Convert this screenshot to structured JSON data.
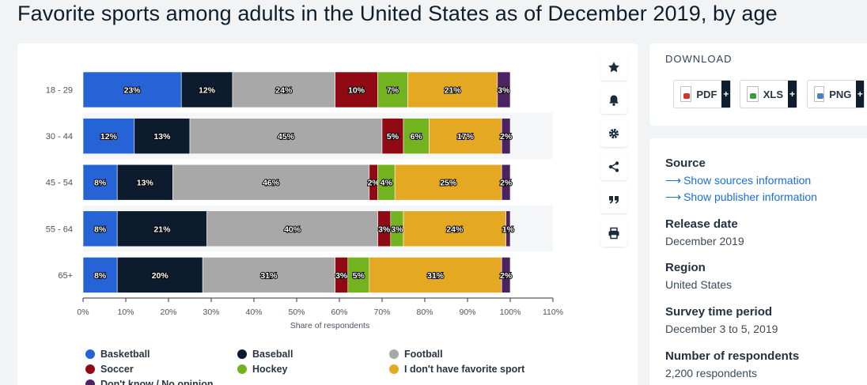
{
  "page_title": "Favorite sports among adults in the United States as of December 2019, by age",
  "toolbar": {
    "buttons": [
      {
        "icon": "star-icon",
        "name": "favorite-button"
      },
      {
        "icon": "bell-icon",
        "name": "notification-button"
      },
      {
        "icon": "gear-icon",
        "name": "settings-button"
      },
      {
        "icon": "share-icon",
        "name": "share-button"
      },
      {
        "icon": "quote-icon",
        "name": "cite-button"
      },
      {
        "icon": "print-icon",
        "name": "print-button"
      }
    ]
  },
  "download": {
    "title": "DOWNLOAD",
    "buttons": [
      {
        "label": "PDF",
        "plus": "+",
        "icon_color": "#d0342c"
      },
      {
        "label": "XLS",
        "plus": "+",
        "icon_color": "#3c9a3c"
      },
      {
        "label": "PNG",
        "plus": "+",
        "icon_color": "#4a7fc0"
      }
    ]
  },
  "info": {
    "source_label": "Source",
    "source_link": "Show sources information",
    "publisher_link": "Show publisher information",
    "release_label": "Release date",
    "release_value": "December 2019",
    "region_label": "Region",
    "region_value": "United States",
    "survey_label": "Survey time period",
    "survey_value": "December 3 to 5, 2019",
    "respondents_label": "Number of respondents",
    "respondents_value": "2,200 respondents"
  },
  "colors": {
    "Basketball": "#2563d6",
    "Baseball": "#0c1c2e",
    "Football": "#a8a8a8",
    "Soccer": "#8f0a12",
    "Hockey": "#72b31f",
    "I don't have favorite sport": "#e5a823",
    "Don't know / No opinion": "#4d2261"
  },
  "chart_data": {
    "type": "bar",
    "orientation": "horizontal",
    "stacked": true,
    "categories": [
      "18 - 29",
      "30 - 44",
      "45 - 54",
      "55 - 64",
      "65+"
    ],
    "series": [
      {
        "name": "Basketball",
        "values": [
          23,
          12,
          8,
          8,
          8
        ]
      },
      {
        "name": "Baseball",
        "values": [
          12,
          13,
          13,
          21,
          20
        ]
      },
      {
        "name": "Football",
        "values": [
          24,
          45,
          46,
          40,
          31
        ]
      },
      {
        "name": "Soccer",
        "values": [
          10,
          5,
          2,
          3,
          3
        ]
      },
      {
        "name": "Hockey",
        "values": [
          7,
          6,
          4,
          3,
          5
        ]
      },
      {
        "name": "I don't have favorite sport",
        "values": [
          21,
          17,
          25,
          24,
          31
        ]
      },
      {
        "name": "Don't know / No opinion",
        "values": [
          3,
          2,
          2,
          1,
          2
        ]
      }
    ],
    "value_suffix": "%",
    "xlabel": "Share of respondents",
    "xlim": [
      0,
      110
    ],
    "xticks": [
      "0%",
      "10%",
      "20%",
      "30%",
      "40%",
      "50%",
      "60%",
      "70%",
      "80%",
      "90%",
      "100%",
      "110%"
    ],
    "legend_position": "bottom"
  }
}
